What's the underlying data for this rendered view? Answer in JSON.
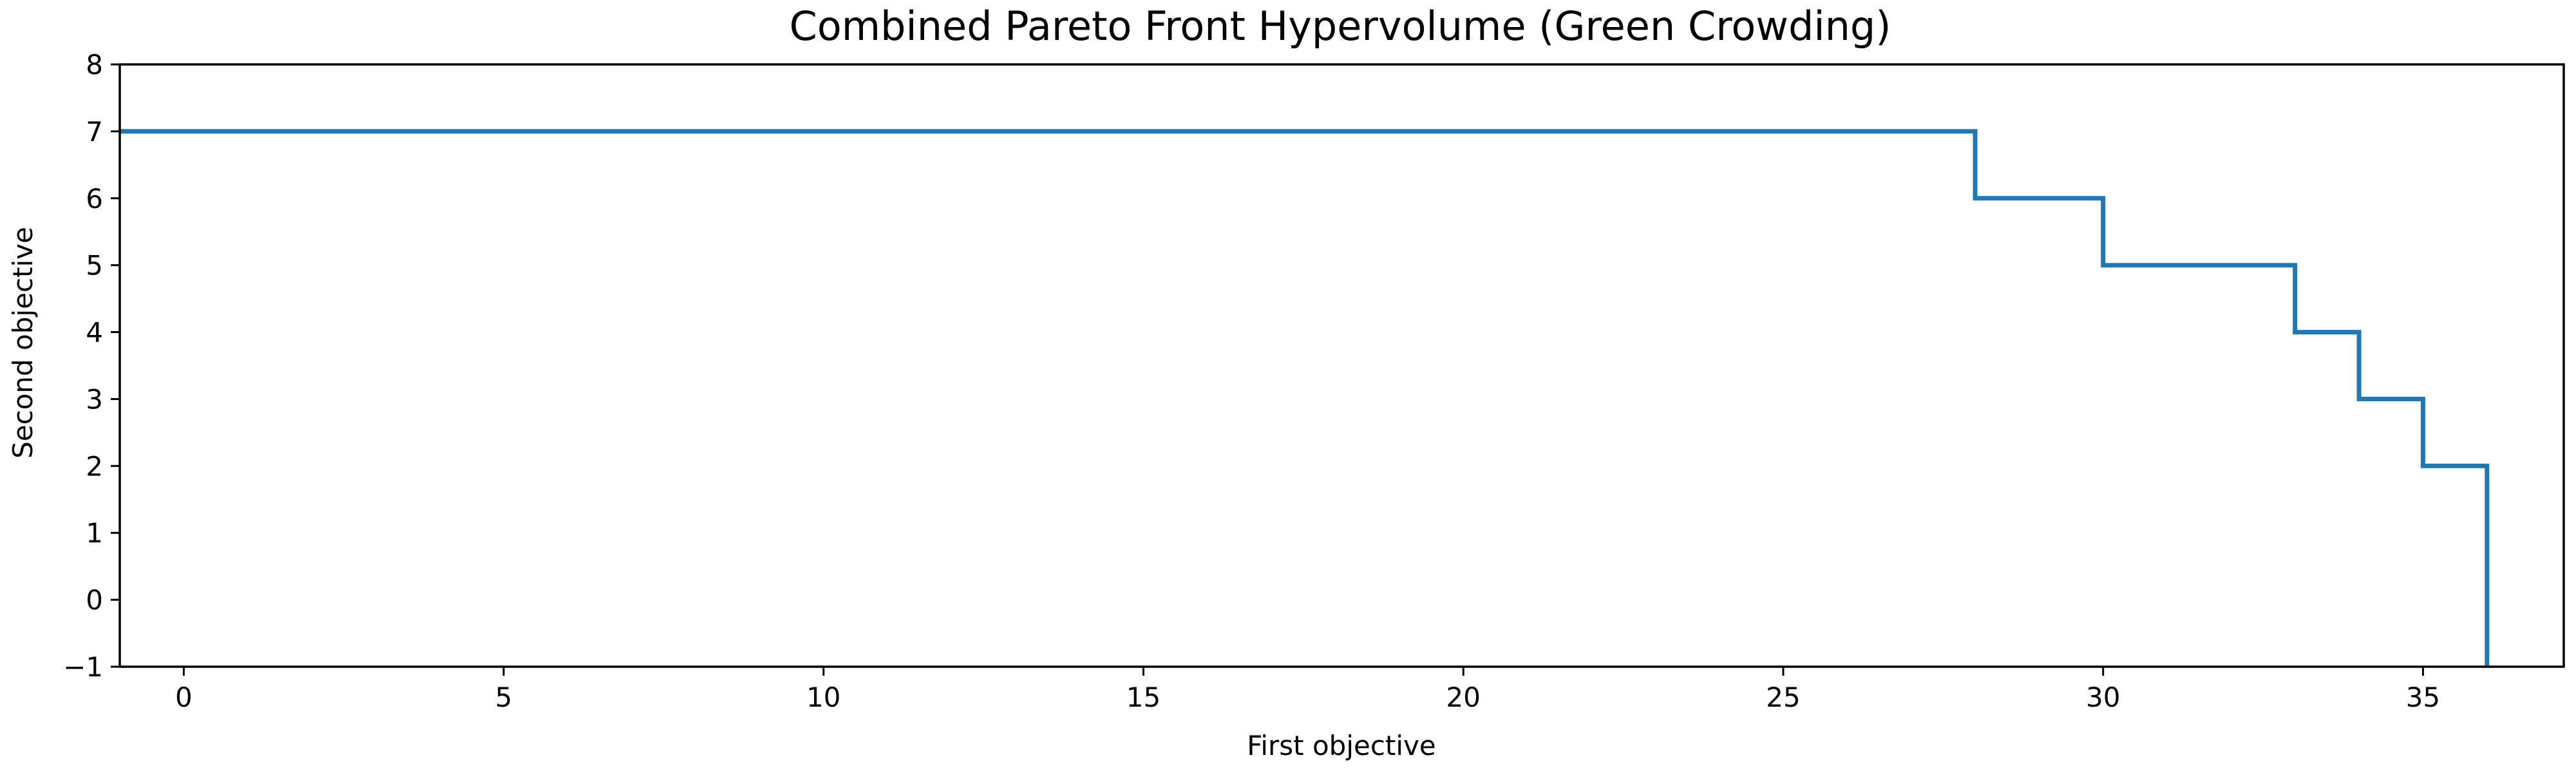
{
  "chart_data": {
    "type": "line",
    "drawstyle": "steps-post",
    "title": "Combined Pareto Front Hypervolume (Green Crowding)",
    "xlabel": "First objective",
    "ylabel": "Second objective",
    "xlim": [
      -1,
      37.2
    ],
    "ylim": [
      -1,
      8
    ],
    "xticks": [
      0,
      5,
      10,
      15,
      20,
      25,
      30,
      35
    ],
    "yticks": [
      -1,
      0,
      1,
      2,
      3,
      4,
      5,
      6,
      7,
      8
    ],
    "xtick_labels": [
      "0",
      "5",
      "10",
      "15",
      "20",
      "25",
      "30",
      "35"
    ],
    "ytick_labels": [
      "−1",
      "0",
      "1",
      "2",
      "3",
      "4",
      "5",
      "6",
      "7",
      "8"
    ],
    "grid": false,
    "legend": "none",
    "series": [
      {
        "color": "#1f77b4",
        "x": [
          -1,
          28,
          30,
          33,
          34,
          35,
          36,
          36
        ],
        "y": [
          7,
          6,
          5,
          4,
          3,
          2,
          -1,
          -1
        ]
      }
    ]
  }
}
